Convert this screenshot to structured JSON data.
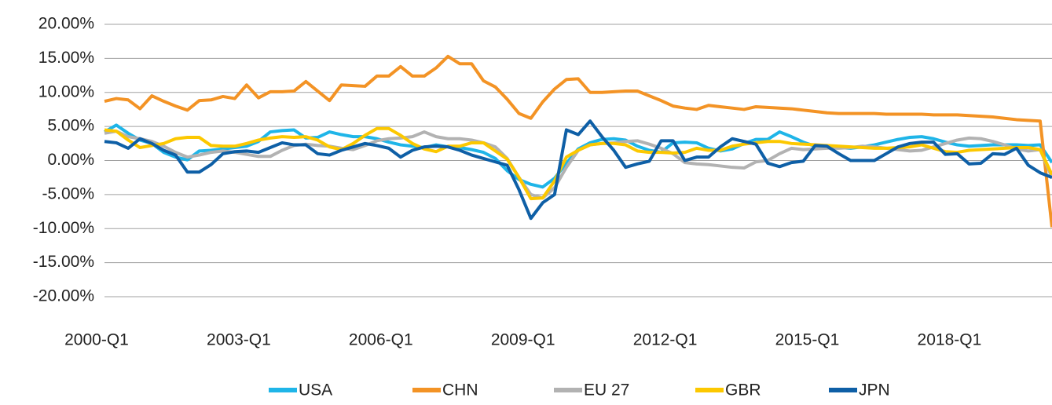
{
  "chart_data": {
    "type": "line",
    "categories": [
      "2000-Q1",
      null,
      null,
      null,
      null,
      null,
      null,
      null,
      null,
      null,
      null,
      null,
      "2003-Q1",
      null,
      null,
      null,
      null,
      null,
      null,
      null,
      null,
      null,
      null,
      null,
      "2006-Q1",
      null,
      null,
      null,
      null,
      null,
      null,
      null,
      null,
      null,
      null,
      null,
      "2009-Q1",
      null,
      null,
      null,
      null,
      null,
      null,
      null,
      null,
      null,
      null,
      null,
      "2012-Q1",
      null,
      null,
      null,
      null,
      null,
      null,
      null,
      null,
      null,
      null,
      null,
      "2015-Q1",
      null,
      null,
      null,
      null,
      null,
      null,
      null,
      null,
      null,
      null,
      null,
      "2018-Q1",
      null,
      null,
      null,
      null,
      null,
      null,
      null,
      null
    ],
    "series": [
      {
        "name": "USA",
        "color": "#1fb5e8",
        "values": [
          4.2,
          5.2,
          4.0,
          3.0,
          2.5,
          1.2,
          0.5,
          0.1,
          1.4,
          1.5,
          1.7,
          1.9,
          2.1,
          2.8,
          4.2,
          4.4,
          4.5,
          3.3,
          3.4,
          4.2,
          3.8,
          3.5,
          3.5,
          3.2,
          2.7,
          2.3,
          2.1,
          1.9,
          2.3,
          2.0,
          1.9,
          1.6,
          1.2,
          0.3,
          -1.5,
          -2.8,
          -3.5,
          -3.9,
          -2.6,
          -0.4,
          1.7,
          2.6,
          3.1,
          3.2,
          3.0,
          2.1,
          1.5,
          1.2,
          2.6,
          2.7,
          2.6,
          1.8,
          1.4,
          1.7,
          2.5,
          3.1,
          3.1,
          4.2,
          3.5,
          2.7,
          2.1,
          2.0,
          1.9,
          1.8,
          2.0,
          2.3,
          2.7,
          3.1,
          3.4,
          3.5,
          3.2,
          2.7,
          2.3,
          2.1,
          2.2,
          2.3,
          2.3,
          2.3,
          2.2,
          2.3,
          -0.3
        ]
      },
      {
        "name": "CHN",
        "color": "#f39325",
        "values": [
          8.7,
          9.1,
          8.9,
          7.6,
          9.5,
          8.7,
          8.0,
          7.4,
          8.8,
          8.9,
          9.4,
          9.1,
          11.1,
          9.2,
          10.1,
          10.1,
          10.2,
          11.6,
          10.2,
          8.8,
          11.1,
          11.0,
          10.9,
          12.4,
          12.4,
          13.8,
          12.4,
          12.4,
          13.6,
          15.3,
          14.2,
          14.2,
          11.7,
          10.8,
          9.0,
          6.9,
          6.2,
          8.6,
          10.5,
          11.9,
          12.0,
          10.0,
          10.0,
          10.1,
          10.2,
          10.2,
          9.5,
          8.8,
          8.0,
          7.7,
          7.5,
          8.1,
          7.9,
          7.7,
          7.5,
          7.9,
          7.8,
          7.7,
          7.6,
          7.4,
          7.2,
          7.0,
          6.9,
          6.9,
          6.9,
          6.9,
          6.8,
          6.8,
          6.8,
          6.8,
          6.7,
          6.7,
          6.7,
          6.6,
          6.5,
          6.4,
          6.2,
          6.0,
          5.9,
          5.8,
          -9.8
        ]
      },
      {
        "name": "EU 27",
        "color": "#b2b2b2",
        "values": [
          4.0,
          4.3,
          3.5,
          3.2,
          2.8,
          2.1,
          1.2,
          0.5,
          0.8,
          1.2,
          1.4,
          1.2,
          0.9,
          0.6,
          0.6,
          1.5,
          2.2,
          2.4,
          2.2,
          2.1,
          1.8,
          1.6,
          2.2,
          2.9,
          3.2,
          3.3,
          3.5,
          4.2,
          3.5,
          3.2,
          3.2,
          3.0,
          2.6,
          2.0,
          0.3,
          -2.5,
          -5.0,
          -5.5,
          -4.0,
          -1.0,
          1.5,
          2.3,
          2.5,
          2.6,
          2.8,
          2.9,
          2.4,
          1.8,
          1.0,
          -0.3,
          -0.5,
          -0.6,
          -0.8,
          -1.0,
          -1.1,
          -0.2,
          0.0,
          1.0,
          1.8,
          1.6,
          1.7,
          1.8,
          1.8,
          1.9,
          2.1,
          2.0,
          1.8,
          1.6,
          1.4,
          1.5,
          2.0,
          2.5,
          3.0,
          3.3,
          3.2,
          2.8,
          2.3,
          1.7,
          1.4,
          1.6,
          -2.5
        ]
      },
      {
        "name": "GBR",
        "color": "#fcc800",
        "values": [
          4.5,
          4.3,
          3.0,
          1.9,
          2.2,
          2.5,
          3.2,
          3.4,
          3.4,
          2.2,
          2.1,
          2.1,
          2.5,
          3.0,
          3.3,
          3.5,
          3.4,
          3.5,
          3.0,
          2.0,
          1.6,
          2.5,
          3.7,
          4.7,
          4.7,
          3.7,
          2.5,
          1.7,
          1.3,
          2.1,
          2.1,
          2.6,
          2.6,
          1.4,
          0.2,
          -2.5,
          -5.6,
          -5.5,
          -3.0,
          0.5,
          1.5,
          2.3,
          2.5,
          2.5,
          2.3,
          1.4,
          1.2,
          1.2,
          1.1,
          1.2,
          1.8,
          1.5,
          1.5,
          2.1,
          2.4,
          2.6,
          2.8,
          2.8,
          2.5,
          2.4,
          2.3,
          2.2,
          2.1,
          2.0,
          1.9,
          1.8,
          1.8,
          1.9,
          2.0,
          2.3,
          1.8,
          1.3,
          1.2,
          1.5,
          1.6,
          1.7,
          1.8,
          1.9,
          1.9,
          1.6,
          -2.1
        ]
      },
      {
        "name": "JPN",
        "color": "#0e5fa6",
        "values": [
          2.8,
          2.6,
          1.8,
          3.2,
          2.5,
          1.5,
          0.8,
          -1.7,
          -1.7,
          -0.6,
          1.0,
          1.3,
          1.4,
          1.2,
          1.9,
          2.6,
          2.3,
          2.3,
          1.0,
          0.8,
          1.5,
          2.0,
          2.5,
          2.2,
          1.8,
          0.5,
          1.5,
          2.0,
          2.1,
          2.0,
          1.5,
          0.8,
          0.3,
          -0.2,
          -0.7,
          -4.3,
          -8.5,
          -6.2,
          -5.0,
          4.5,
          3.8,
          5.8,
          3.5,
          1.5,
          -1.0,
          -0.5,
          -0.1,
          2.9,
          2.9,
          0.0,
          0.5,
          0.5,
          2.0,
          3.2,
          2.8,
          2.4,
          -0.4,
          -0.9,
          -0.3,
          -0.1,
          2.2,
          2.1,
          1.0,
          0.0,
          0.0,
          0.0,
          1.0,
          2.0,
          2.5,
          2.7,
          2.7,
          0.9,
          1.0,
          -0.5,
          -0.4,
          1.0,
          0.9,
          1.8,
          -0.7,
          -1.8,
          -2.5
        ]
      }
    ],
    "ylim": [
      -20,
      20
    ],
    "yticks": [
      {
        "value": -20,
        "label": "-20.00%"
      },
      {
        "value": -15,
        "label": "-15.00%"
      },
      {
        "value": -10,
        "label": "-10.00%"
      },
      {
        "value": -5,
        "label": "-5.00%"
      },
      {
        "value": 0,
        "label": "0.00%"
      },
      {
        "value": 5,
        "label": "5.00%"
      },
      {
        "value": 10,
        "label": "10.00%"
      },
      {
        "value": 15,
        "label": "15.00%"
      },
      {
        "value": 20,
        "label": "20.00%"
      }
    ],
    "grid": true,
    "legend": "bottom"
  }
}
